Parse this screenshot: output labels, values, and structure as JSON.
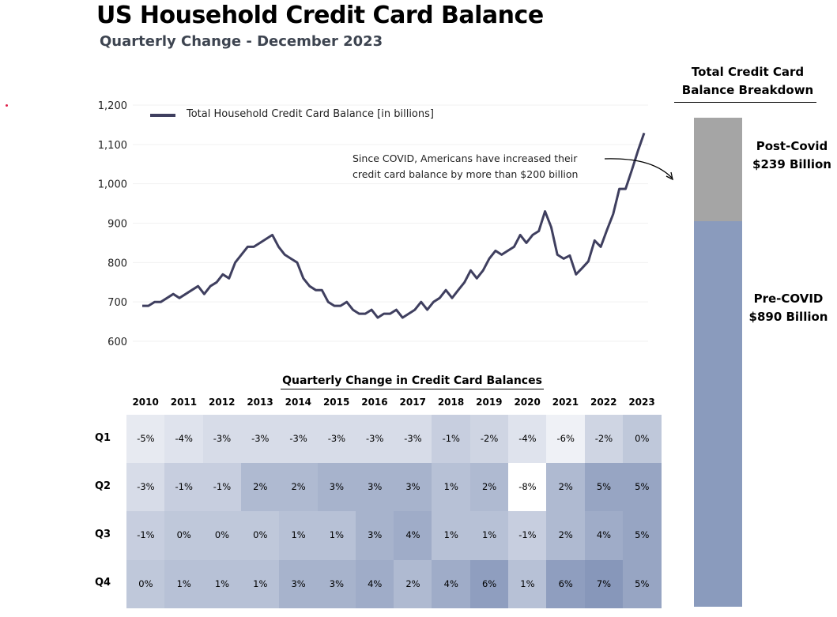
{
  "title": "US Household Credit Card Balance",
  "subtitle": "Quarterly Change - December 2023",
  "chart_data": [
    {
      "type": "line",
      "legend": "Total Household Credit Card Balance [in billions]",
      "legend_position": "top-left",
      "ylim": [
        600,
        1200
      ],
      "yticks": [
        "600",
        "700",
        "800",
        "900",
        "1,000",
        "1,100",
        "1,200"
      ],
      "ytick_values": [
        600,
        700,
        800,
        900,
        1000,
        1100,
        1200
      ],
      "grid": true,
      "annotation": [
        "Since COVID, Americans have increased their",
        "credit card balance by more than $200 billion"
      ],
      "values": [
        690,
        690,
        700,
        700,
        710,
        720,
        710,
        720,
        730,
        740,
        720,
        740,
        750,
        770,
        760,
        800,
        820,
        840,
        840,
        850,
        860,
        870,
        840,
        820,
        810,
        800,
        760,
        740,
        730,
        730,
        700,
        690,
        690,
        700,
        680,
        670,
        670,
        680,
        660,
        670,
        670,
        680,
        660,
        670,
        680,
        700,
        680,
        700,
        710,
        730,
        710,
        730,
        750,
        780,
        760,
        780,
        810,
        830,
        820,
        830,
        840,
        870,
        850,
        870,
        880,
        930,
        890,
        820,
        810,
        818,
        770,
        786,
        803,
        856,
        840,
        883,
        923,
        987,
        987,
        1034,
        1084,
        1129
      ],
      "color": "#3f3f5f"
    },
    {
      "type": "heatmap",
      "title": "Quarterly Change in Credit Card Balances",
      "columns": [
        "2010",
        "2011",
        "2012",
        "2013",
        "2014",
        "2015",
        "2016",
        "2017",
        "2018",
        "2019",
        "2020",
        "2021",
        "2022",
        "2023"
      ],
      "rows": [
        "Q1",
        "Q2",
        "Q3",
        "Q4"
      ],
      "values": [
        [
          -5,
          -4,
          -3,
          -3,
          -3,
          -3,
          -3,
          -3,
          -1,
          -2,
          -4,
          -6,
          -2,
          0
        ],
        [
          -3,
          -1,
          -1,
          2,
          2,
          3,
          3,
          3,
          1,
          2,
          -8,
          2,
          5,
          5
        ],
        [
          -1,
          0,
          0,
          0,
          1,
          1,
          3,
          4,
          1,
          1,
          -1,
          2,
          4,
          5
        ],
        [
          0,
          1,
          1,
          1,
          3,
          3,
          4,
          2,
          4,
          6,
          1,
          6,
          7,
          5
        ]
      ],
      "color_low": "#ffffff",
      "color_high": "#8797ba"
    },
    {
      "type": "bar",
      "title_lines": [
        "Total Credit Card",
        "Balance Breakdown"
      ],
      "segments": [
        {
          "name": "Pre-COVID",
          "label": "$890 Billion",
          "value": 890,
          "color": "#8a9bbd"
        },
        {
          "name": "Post-Covid",
          "label": "$239 Billion",
          "value": 239,
          "color": "#a5a5a5"
        }
      ]
    }
  ]
}
